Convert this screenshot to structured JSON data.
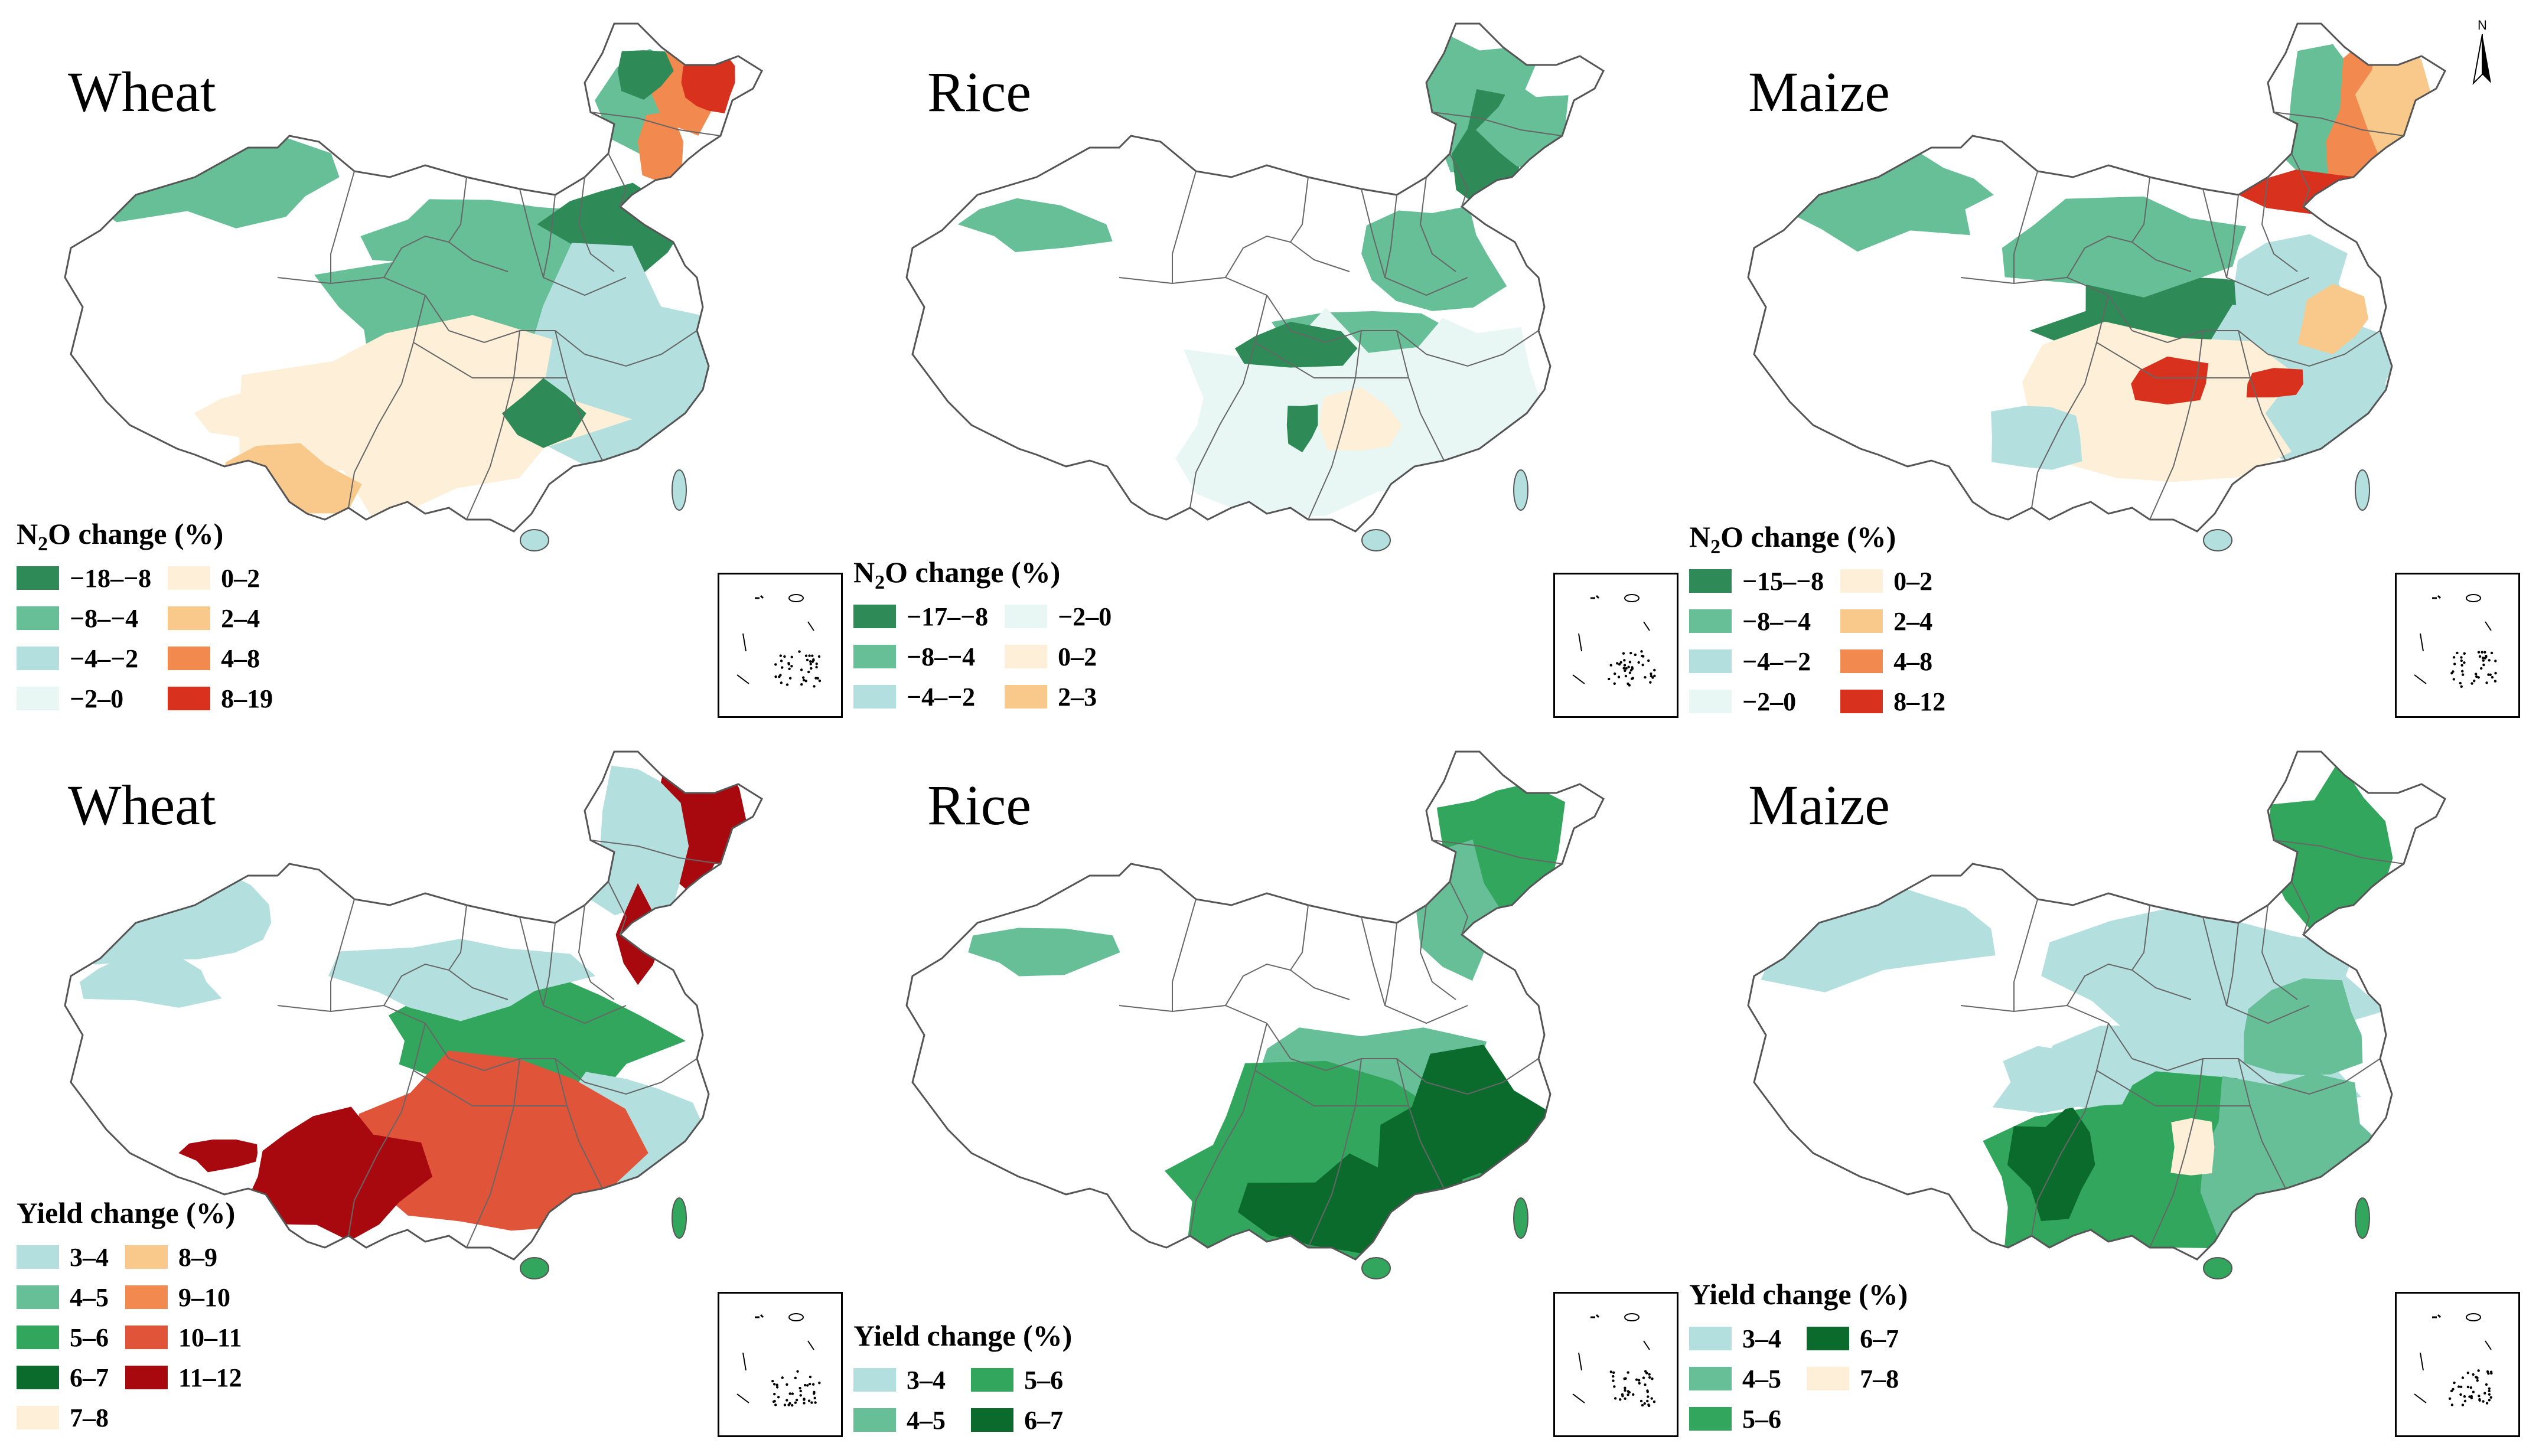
{
  "north_arrow": {
    "label": "N"
  },
  "panels": [
    {
      "crop": "Wheat",
      "legend_title_pre": "N",
      "legend_title_sub": "2",
      "legend_title_post": "O change (%)",
      "legend_rows": 4,
      "legend": [
        {
          "label": "−18–−8",
          "color": "#2e8b57"
        },
        {
          "label": "−8–−4",
          "color": "#66bf97"
        },
        {
          "label": "−4–−2",
          "color": "#b3e0de"
        },
        {
          "label": "−2–0",
          "color": "#e8f6f4"
        },
        {
          "label": "0–2",
          "color": "#fdefd8"
        },
        {
          "label": "2–4",
          "color": "#f8c98a"
        },
        {
          "label": "4–8",
          "color": "#f2894f"
        },
        {
          "label": "8–19",
          "color": "#d8321e"
        }
      ]
    },
    {
      "crop": "Rice",
      "legend_title_pre": "N",
      "legend_title_sub": "2",
      "legend_title_post": "O change (%)",
      "legend_rows": 3,
      "legend": [
        {
          "label": "−17–−8",
          "color": "#2e8b57"
        },
        {
          "label": "−8–−4",
          "color": "#66bf97"
        },
        {
          "label": "−4–−2",
          "color": "#b3e0de"
        },
        {
          "label": "−2–0",
          "color": "#e8f6f4"
        },
        {
          "label": "0–2",
          "color": "#fdefd8"
        },
        {
          "label": "2–3",
          "color": "#f8c98a"
        }
      ]
    },
    {
      "crop": "Maize",
      "legend_title_pre": "N",
      "legend_title_sub": "2",
      "legend_title_post": "O change (%)",
      "legend_rows": 4,
      "legend": [
        {
          "label": "−15–−8",
          "color": "#2e8b57"
        },
        {
          "label": "−8–−4",
          "color": "#66bf97"
        },
        {
          "label": "−4–−2",
          "color": "#b3e0de"
        },
        {
          "label": "−2–0",
          "color": "#e8f6f4"
        },
        {
          "label": "0–2",
          "color": "#fdefd8"
        },
        {
          "label": "2–4",
          "color": "#f8c98a"
        },
        {
          "label": "4–8",
          "color": "#f2894f"
        },
        {
          "label": "8–12",
          "color": "#d8321e"
        }
      ]
    },
    {
      "crop": "Wheat",
      "legend_title_pre": "Yield change (%)",
      "legend_title_sub": "",
      "legend_title_post": "",
      "legend_rows": 5,
      "legend": [
        {
          "label": "3–4",
          "color": "#b3e0de"
        },
        {
          "label": "4–5",
          "color": "#66bf97"
        },
        {
          "label": "5–6",
          "color": "#33a65e"
        },
        {
          "label": "6–7",
          "color": "#0b6b2c"
        },
        {
          "label": "7–8",
          "color": "#fdefd8"
        },
        {
          "label": "8–9",
          "color": "#f8c98a"
        },
        {
          "label": "9–10",
          "color": "#f2894f"
        },
        {
          "label": "10–11",
          "color": "#e0543a"
        },
        {
          "label": "11–12",
          "color": "#a8090f"
        }
      ]
    },
    {
      "crop": "Rice",
      "legend_title_pre": "Yield change (%)",
      "legend_title_sub": "",
      "legend_title_post": "",
      "legend_rows": 2,
      "legend": [
        {
          "label": "3–4",
          "color": "#b3e0de"
        },
        {
          "label": "4–5",
          "color": "#66bf97"
        },
        {
          "label": "5–6",
          "color": "#33a65e"
        },
        {
          "label": "6–7",
          "color": "#0b6b2c"
        }
      ]
    },
    {
      "crop": "Maize",
      "legend_title_pre": "Yield change (%)",
      "legend_title_sub": "",
      "legend_title_post": "",
      "legend_rows": 3,
      "legend": [
        {
          "label": "3–4",
          "color": "#b3e0de"
        },
        {
          "label": "4–5",
          "color": "#66bf97"
        },
        {
          "label": "5–6",
          "color": "#33a65e"
        },
        {
          "label": "6–7",
          "color": "#0b6b2c"
        },
        {
          "label": "7–8",
          "color": "#fdefd8"
        }
      ]
    }
  ]
}
